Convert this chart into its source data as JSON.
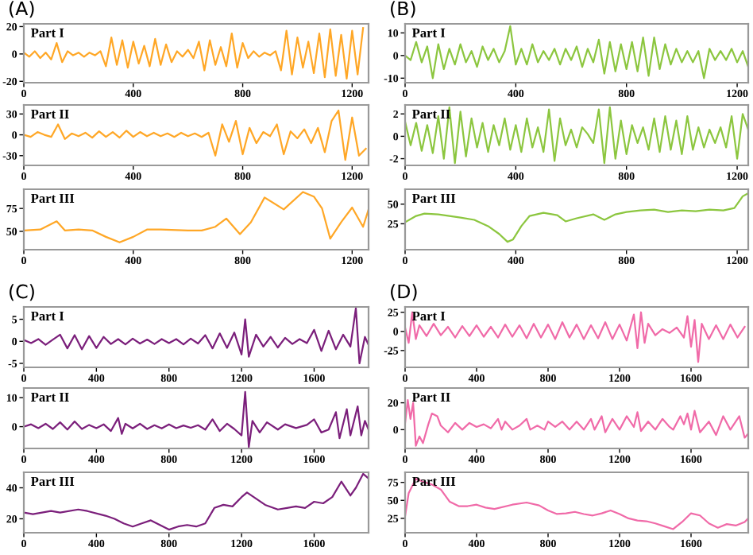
{
  "chart_data": [
    {
      "type": "line",
      "title": "(A)",
      "annotations": [
        "Part I"
      ],
      "xlim": [
        0,
        1260
      ],
      "ylim": [
        -21,
        22
      ],
      "xticks": [
        0,
        400,
        800,
        1200
      ],
      "yticks": [
        -20,
        0,
        20
      ],
      "grid": false,
      "x": [
        0,
        20,
        40,
        60,
        80,
        100,
        120,
        140,
        160,
        180,
        200,
        220,
        240,
        260,
        280,
        300,
        320,
        340,
        360,
        380,
        400,
        420,
        440,
        460,
        480,
        500,
        520,
        540,
        560,
        580,
        600,
        620,
        640,
        660,
        680,
        700,
        720,
        740,
        760,
        780,
        800,
        820,
        840,
        860,
        880,
        900,
        920,
        940,
        960,
        980,
        1000,
        1020,
        1040,
        1060,
        1080,
        1100,
        1120,
        1140,
        1160,
        1180,
        1200,
        1220,
        1240
      ],
      "series": [
        {
          "color": "#ffa726",
          "values": [
            1,
            -2,
            2,
            -3,
            1,
            -4,
            8,
            -6,
            2,
            -1,
            1,
            -2,
            1,
            -1,
            2,
            -9,
            12,
            -8,
            10,
            -10,
            9,
            -7,
            6,
            -9,
            11,
            -8,
            7,
            -6,
            2,
            -2,
            3,
            -3,
            9,
            -12,
            10,
            -8,
            5,
            -9,
            15,
            -10,
            8,
            -3,
            2,
            -2,
            1,
            -1,
            2,
            -12,
            17,
            -15,
            12,
            -10,
            9,
            -14,
            15,
            -17,
            18,
            -16,
            14,
            -18,
            17,
            -15,
            19
          ]
        }
      ]
    },
    {
      "type": "line",
      "annotations": [
        "Part II"
      ],
      "xlim": [
        0,
        1260
      ],
      "ylim": [
        -44,
        43
      ],
      "xticks": [
        0,
        400,
        800,
        1200
      ],
      "yticks": [
        -30,
        0,
        30
      ],
      "grid": false,
      "x": [
        0,
        25,
        50,
        75,
        100,
        125,
        150,
        175,
        200,
        225,
        250,
        275,
        300,
        325,
        350,
        375,
        400,
        425,
        450,
        475,
        500,
        525,
        550,
        575,
        600,
        625,
        650,
        675,
        700,
        725,
        750,
        775,
        800,
        825,
        850,
        875,
        900,
        925,
        950,
        975,
        1000,
        1025,
        1050,
        1075,
        1100,
        1125,
        1150,
        1175,
        1200,
        1225,
        1250
      ],
      "series": [
        {
          "color": "#ffa726",
          "values": [
            0,
            -3,
            4,
            0,
            -3,
            15,
            -6,
            2,
            -2,
            3,
            -4,
            5,
            -3,
            4,
            -4,
            6,
            -3,
            4,
            -2,
            3,
            -2,
            2,
            -3,
            3,
            -2,
            2,
            -3,
            3,
            -30,
            15,
            -10,
            20,
            -28,
            10,
            -12,
            4,
            -2,
            15,
            -28,
            5,
            -5,
            8,
            -12,
            10,
            -25,
            20,
            35,
            -36,
            25,
            -30,
            -20
          ]
        }
      ]
    },
    {
      "type": "line",
      "annotations": [
        "Part III"
      ],
      "xlim": [
        0,
        1260
      ],
      "ylim": [
        30,
        96
      ],
      "xticks": [
        0,
        400,
        800,
        1200
      ],
      "yticks": [
        50,
        75
      ],
      "grid": false,
      "x": [
        0,
        60,
        120,
        150,
        200,
        250,
        300,
        350,
        400,
        450,
        500,
        600,
        650,
        700,
        740,
        790,
        830,
        880,
        950,
        1020,
        1060,
        1090,
        1120,
        1160,
        1200,
        1240,
        1260
      ],
      "series": [
        {
          "color": "#ffa726",
          "values": [
            51,
            52,
            61,
            51,
            52,
            51,
            44,
            38,
            44,
            52,
            52,
            51,
            51,
            55,
            64,
            47,
            60,
            87,
            74,
            93,
            88,
            75,
            42,
            60,
            76,
            55,
            74
          ]
        }
      ]
    },
    {
      "type": "line",
      "title": "(B)",
      "annotations": [
        "Part I"
      ],
      "xlim": [
        0,
        1240
      ],
      "ylim": [
        -12,
        14
      ],
      "xticks": [
        0,
        400,
        800,
        1200
      ],
      "yticks": [
        -10,
        0,
        10
      ],
      "grid": false,
      "x": [
        0,
        20,
        40,
        60,
        80,
        100,
        120,
        140,
        160,
        180,
        200,
        220,
        240,
        260,
        280,
        300,
        320,
        340,
        360,
        380,
        400,
        420,
        440,
        460,
        480,
        500,
        520,
        540,
        560,
        580,
        600,
        620,
        640,
        660,
        680,
        700,
        720,
        740,
        760,
        780,
        800,
        820,
        840,
        860,
        880,
        900,
        920,
        940,
        960,
        980,
        1000,
        1020,
        1040,
        1060,
        1080,
        1100,
        1120,
        1140,
        1160,
        1180,
        1200,
        1220,
        1240
      ],
      "series": [
        {
          "color": "#8cc63f",
          "values": [
            0,
            -2,
            6,
            -3,
            4,
            -10,
            5,
            -6,
            3,
            -4,
            5,
            -3,
            2,
            -5,
            4,
            -2,
            3,
            -3,
            2,
            13,
            -4,
            3,
            -4,
            5,
            -3,
            2,
            -2,
            3,
            -4,
            3,
            -2,
            4,
            -5,
            3,
            -3,
            7,
            -8,
            6,
            -7,
            5,
            -6,
            6,
            -7,
            8,
            -9,
            8,
            -6,
            5,
            -4,
            3,
            -3,
            2,
            -3,
            2,
            -10,
            3,
            -2,
            2,
            -2,
            3,
            -3,
            2,
            -5
          ]
        }
      ]
    },
    {
      "type": "line",
      "annotations": [
        "Part II"
      ],
      "xlim": [
        0,
        1240
      ],
      "ylim": [
        -2.6,
        2.8
      ],
      "xticks": [
        0,
        400,
        800,
        1200
      ],
      "yticks": [
        -2,
        0,
        2
      ],
      "grid": false,
      "x": [
        0,
        20,
        40,
        60,
        80,
        100,
        120,
        140,
        160,
        180,
        200,
        220,
        240,
        260,
        280,
        300,
        320,
        340,
        360,
        380,
        400,
        420,
        440,
        460,
        480,
        500,
        520,
        540,
        560,
        580,
        600,
        620,
        640,
        660,
        680,
        700,
        720,
        740,
        760,
        780,
        800,
        820,
        840,
        860,
        880,
        900,
        920,
        940,
        960,
        980,
        1000,
        1020,
        1040,
        1060,
        1080,
        1100,
        1120,
        1140,
        1160,
        1180,
        1200,
        1220,
        1240
      ],
      "series": [
        {
          "color": "#8cc63f",
          "values": [
            1.3,
            -0.8,
            1.2,
            -1.3,
            1.0,
            -1.5,
            1.8,
            -2.0,
            2.6,
            -2.4,
            2.2,
            -1.8,
            1.6,
            -1.0,
            1.2,
            -1.4,
            1.0,
            -0.8,
            1.6,
            -1.2,
            1.0,
            -1.4,
            1.6,
            -1.0,
            0.8,
            -1.4,
            2.4,
            -2.2,
            1.6,
            -0.8,
            0.6,
            -1.0,
            0.8,
            0.2,
            -0.6,
            2.4,
            -2.4,
            2.6,
            -2.0,
            1.4,
            -1.6,
            1.0,
            -0.6,
            0.8,
            -1.2,
            1.6,
            -1.4,
            1.8,
            -1.2,
            1.4,
            -1.6,
            1.8,
            -1.2,
            0.8,
            -1.0,
            0.6,
            -0.6,
            0.8,
            -1.0,
            1.8,
            -2.0,
            2.0,
            0.6
          ]
        }
      ]
    },
    {
      "type": "line",
      "annotations": [
        "Part III"
      ],
      "xlim": [
        0,
        1240
      ],
      "ylim": [
        -8,
        69
      ],
      "xticks": [
        0,
        400,
        800,
        1200
      ],
      "yticks": [
        25,
        50
      ],
      "grid": false,
      "x": [
        0,
        40,
        70,
        120,
        200,
        250,
        300,
        340,
        370,
        390,
        420,
        450,
        500,
        550,
        580,
        620,
        680,
        720,
        760,
        800,
        850,
        900,
        950,
        1000,
        1050,
        1100,
        1150,
        1190,
        1220,
        1240
      ],
      "series": [
        {
          "color": "#8cc63f",
          "values": [
            27,
            35,
            38,
            37,
            33,
            30,
            22,
            12,
            2,
            5,
            22,
            35,
            39,
            36,
            28,
            32,
            37,
            30,
            37,
            40,
            42,
            43,
            40,
            42,
            41,
            43,
            42,
            45,
            60,
            64
          ]
        }
      ]
    },
    {
      "type": "line",
      "title": "(C)",
      "annotations": [
        "Part I"
      ],
      "xlim": [
        0,
        1900
      ],
      "ylim": [
        -5.9,
        7.8
      ],
      "xticks": [
        0,
        400,
        800,
        1200,
        1600
      ],
      "yticks": [
        -5,
        0,
        5
      ],
      "grid": false,
      "x": [
        0,
        40,
        80,
        120,
        160,
        200,
        240,
        280,
        320,
        360,
        400,
        440,
        480,
        520,
        560,
        600,
        640,
        680,
        720,
        760,
        800,
        840,
        880,
        920,
        960,
        1000,
        1040,
        1080,
        1120,
        1160,
        1200,
        1220,
        1240,
        1280,
        1320,
        1360,
        1400,
        1440,
        1480,
        1520,
        1560,
        1600,
        1640,
        1680,
        1720,
        1760,
        1800,
        1830,
        1850,
        1880,
        1900
      ],
      "series": [
        {
          "color": "#7b1f7b",
          "values": [
            0.3,
            -0.4,
            0.5,
            -0.8,
            0.4,
            1.5,
            -1.6,
            1.4,
            -1.8,
            1.2,
            -1.5,
            1.0,
            -0.6,
            0.5,
            -0.7,
            0.6,
            -0.5,
            0.4,
            -0.6,
            0.5,
            -0.4,
            0.5,
            -0.7,
            0.6,
            -0.5,
            1.4,
            -1.6,
            1.8,
            -1.5,
            2.0,
            -3.0,
            5.0,
            -3.5,
            1.5,
            -1.2,
            1.0,
            -1.4,
            0.8,
            -0.6,
            0.5,
            -0.4,
            2.6,
            -2.2,
            2.4,
            -1.8,
            1.5,
            -1.2,
            7.5,
            -5.0,
            1.0,
            -0.8
          ]
        }
      ]
    },
    {
      "type": "line",
      "annotations": [
        "Part II"
      ],
      "xlim": [
        0,
        1900
      ],
      "ylim": [
        -7.5,
        13.3
      ],
      "xticks": [
        0,
        400,
        800,
        1200,
        1600
      ],
      "yticks": [
        0,
        10
      ],
      "grid": false,
      "x": [
        0,
        40,
        80,
        120,
        160,
        200,
        240,
        280,
        320,
        360,
        400,
        440,
        480,
        520,
        540,
        560,
        600,
        640,
        680,
        720,
        760,
        800,
        840,
        880,
        920,
        960,
        1000,
        1040,
        1080,
        1120,
        1160,
        1200,
        1220,
        1240,
        1260,
        1300,
        1340,
        1400,
        1440,
        1500,
        1560,
        1600,
        1640,
        1680,
        1720,
        1740,
        1780,
        1800,
        1840,
        1860,
        1880,
        1900
      ],
      "series": [
        {
          "color": "#7b1f7b",
          "values": [
            0,
            0.8,
            -0.5,
            1,
            -0.8,
            1.5,
            -1,
            1.8,
            -0.8,
            0.6,
            -0.5,
            0.8,
            -1.5,
            3,
            -2.5,
            1,
            -0.6,
            1.0,
            -0.8,
            0.5,
            -0.6,
            0.8,
            -0.5,
            0.4,
            -0.4,
            0.5,
            -1,
            2.5,
            -1.5,
            1,
            -0.8,
            -3,
            12,
            -7,
            2,
            -2,
            1.5,
            -1,
            0.8,
            -0.5,
            0.6,
            2.5,
            -2,
            -1,
            5,
            -4,
            6,
            -3,
            7,
            -3,
            2,
            -1
          ]
        }
      ]
    },
    {
      "type": "line",
      "annotations": [
        "Part III"
      ],
      "xlim": [
        0,
        1900
      ],
      "ylim": [
        11,
        50
      ],
      "xticks": [
        0,
        400,
        800,
        1200,
        1600
      ],
      "yticks": [
        20,
        40
      ],
      "grid": false,
      "x": [
        0,
        50,
        100,
        150,
        200,
        300,
        350,
        450,
        500,
        550,
        600,
        650,
        700,
        750,
        800,
        850,
        900,
        950,
        1000,
        1050,
        1100,
        1150,
        1200,
        1230,
        1280,
        1330,
        1400,
        1450,
        1500,
        1550,
        1600,
        1650,
        1700,
        1750,
        1800,
        1830,
        1870,
        1900
      ],
      "series": [
        {
          "color": "#7b1f7b",
          "values": [
            24,
            23,
            24,
            25,
            24,
            26,
            25,
            22,
            20,
            17,
            15,
            17,
            19,
            16,
            13,
            15,
            16,
            15,
            17,
            27,
            29,
            28,
            34,
            37,
            33,
            29,
            26,
            27,
            28,
            27,
            31,
            30,
            34,
            44,
            35,
            40,
            49,
            46
          ]
        }
      ]
    },
    {
      "type": "line",
      "title": "(D)",
      "annotations": [
        "Part I"
      ],
      "xlim": [
        0,
        1920
      ],
      "ylim": [
        -47,
        32
      ],
      "xticks": [
        0,
        400,
        800,
        1200,
        1600
      ],
      "yticks": [
        -25,
        0,
        25
      ],
      "grid": false,
      "x": [
        0,
        20,
        40,
        60,
        80,
        120,
        160,
        200,
        240,
        280,
        320,
        360,
        400,
        440,
        480,
        520,
        560,
        600,
        640,
        680,
        720,
        760,
        800,
        840,
        880,
        920,
        960,
        1000,
        1040,
        1080,
        1120,
        1160,
        1200,
        1240,
        1280,
        1300,
        1320,
        1340,
        1360,
        1400,
        1440,
        1480,
        1520,
        1560,
        1580,
        1600,
        1620,
        1640,
        1660,
        1700,
        1740,
        1780,
        1820,
        1860,
        1900
      ],
      "series": [
        {
          "color": "#f06aa8",
          "values": [
            5,
            -15,
            25,
            -10,
            8,
            -6,
            10,
            -5,
            6,
            -8,
            7,
            -6,
            8,
            -7,
            6,
            -8,
            9,
            -7,
            8,
            -9,
            10,
            -8,
            9,
            -10,
            12,
            -8,
            9,
            -10,
            8,
            -9,
            12,
            -10,
            9,
            -12,
            22,
            -22,
            25,
            -15,
            10,
            -5,
            3,
            -2,
            5,
            -8,
            20,
            -20,
            15,
            -40,
            10,
            -10,
            8,
            -10,
            9,
            -8,
            6
          ]
        }
      ]
    },
    {
      "type": "line",
      "annotations": [
        "Part II"
      ],
      "xlim": [
        0,
        1920
      ],
      "ylim": [
        -14,
        31
      ],
      "xticks": [
        0,
        400,
        800,
        1200,
        1600
      ],
      "yticks": [
        0,
        20
      ],
      "grid": false,
      "x": [
        0,
        15,
        30,
        45,
        60,
        80,
        100,
        130,
        150,
        180,
        200,
        240,
        280,
        320,
        360,
        400,
        440,
        480,
        520,
        540,
        560,
        600,
        640,
        680,
        700,
        740,
        780,
        800,
        840,
        880,
        920,
        960,
        1000,
        1040,
        1060,
        1100,
        1120,
        1160,
        1200,
        1240,
        1280,
        1300,
        1320,
        1360,
        1400,
        1440,
        1480,
        1500,
        1540,
        1560,
        1580,
        1600,
        1620,
        1650,
        1700,
        1740,
        1780,
        1820,
        1870,
        1900,
        1920
      ],
      "series": [
        {
          "color": "#f06aa8",
          "values": [
            5,
            22,
            8,
            20,
            -12,
            -5,
            -10,
            4,
            12,
            10,
            3,
            -2,
            5,
            0,
            5,
            2,
            4,
            1,
            8,
            0,
            6,
            0,
            3,
            8,
            0,
            3,
            0,
            6,
            2,
            6,
            0,
            6,
            0,
            8,
            0,
            10,
            -2,
            8,
            0,
            10,
            2,
            13,
            -1,
            6,
            0,
            8,
            2,
            0,
            10,
            4,
            12,
            0,
            14,
            -2,
            6,
            -4,
            10,
            0,
            10,
            -6,
            -3
          ]
        }
      ]
    },
    {
      "type": "line",
      "annotations": [
        "Part III"
      ],
      "xlim": [
        0,
        1920
      ],
      "ylim": [
        5,
        89
      ],
      "xticks": [
        0,
        400,
        800,
        1200,
        1600
      ],
      "yticks": [
        25,
        50,
        75
      ],
      "grid": false,
      "x": [
        0,
        20,
        60,
        100,
        150,
        200,
        250,
        300,
        350,
        400,
        450,
        500,
        600,
        680,
        750,
        800,
        850,
        900,
        950,
        1000,
        1050,
        1100,
        1150,
        1200,
        1250,
        1300,
        1350,
        1400,
        1450,
        1500,
        1550,
        1600,
        1650,
        1700,
        1750,
        1800,
        1850,
        1900,
        1920
      ],
      "series": [
        {
          "color": "#f06aa8",
          "values": [
            28,
            60,
            80,
            76,
            72,
            65,
            48,
            42,
            42,
            44,
            40,
            38,
            44,
            47,
            43,
            36,
            31,
            32,
            34,
            31,
            29,
            32,
            36,
            31,
            25,
            22,
            21,
            18,
            14,
            10,
            20,
            32,
            29,
            18,
            12,
            17,
            15,
            20,
            25
          ]
        }
      ]
    }
  ]
}
